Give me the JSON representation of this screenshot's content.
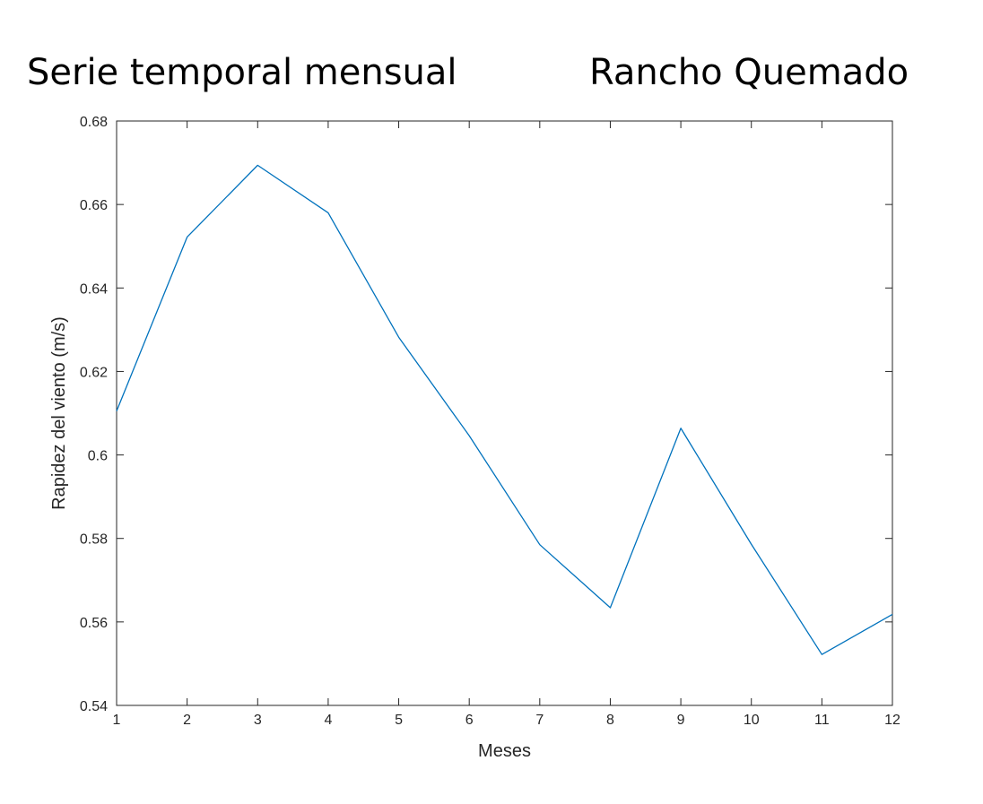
{
  "chart_data": {
    "type": "line",
    "title_left": "Serie temporal mensual",
    "title_right": "Rancho Quemado",
    "xlabel": "Meses",
    "ylabel": "Rapidez del viento (m/s)",
    "xlim": [
      1,
      12
    ],
    "ylim": [
      0.54,
      0.68
    ],
    "xticks": [
      1,
      2,
      3,
      4,
      5,
      6,
      7,
      8,
      9,
      10,
      11,
      12
    ],
    "yticks": [
      0.54,
      0.56,
      0.58,
      0.6,
      0.62,
      0.64,
      0.66,
      0.68
    ],
    "ytick_labels": [
      "0.54",
      "0.56",
      "0.58",
      "0.6",
      "0.62",
      "0.64",
      "0.66",
      "0.68"
    ],
    "grid": false,
    "series": [
      {
        "color": "#0072BD",
        "x": [
          1,
          2,
          3,
          4,
          5,
          6,
          7,
          8,
          9,
          10,
          11,
          12
        ],
        "y": [
          0.6105,
          0.6522,
          0.6694,
          0.658,
          0.6282,
          0.6046,
          0.5785,
          0.5634,
          0.6064,
          0.5786,
          0.5522,
          0.5618
        ]
      }
    ]
  }
}
